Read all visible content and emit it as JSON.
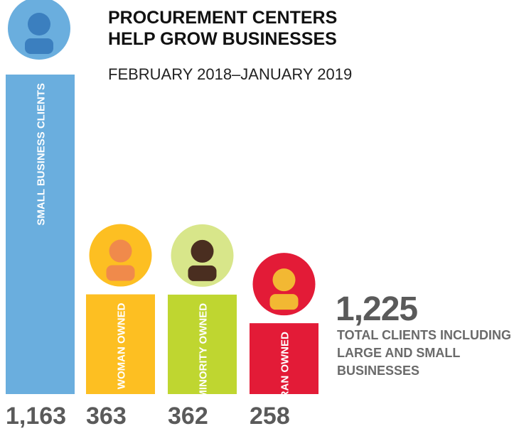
{
  "chart_data": {
    "type": "bar",
    "title": "PROCUREMENT CENTERS HELP GROW BUSINESSES",
    "subtitle": "FEBRUARY 2018–JANUARY 2019",
    "categories": [
      "SMALL BUSINESS CLIENTS",
      "WOMAN OWNED",
      "MINORITY OWNED",
      "VETERAN OWNED"
    ],
    "values": [
      1163,
      363,
      362,
      258
    ],
    "value_labels": [
      "1,163",
      "363",
      "362",
      "258"
    ],
    "colors": [
      "#6aaede",
      "#fdbf22",
      "#bfd630",
      "#e31b37"
    ],
    "annotation": {
      "value": 1225,
      "label": "1,225",
      "text": "TOTAL CLIENTS INCLUDING LARGE AND SMALL BUSINESSES"
    }
  }
}
